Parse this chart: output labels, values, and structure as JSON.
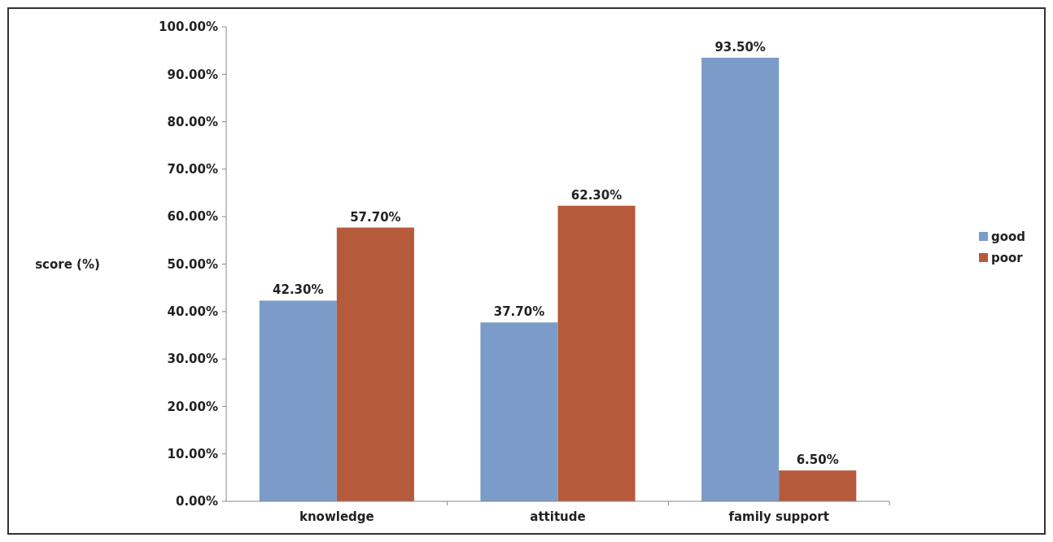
{
  "chart_data": {
    "type": "bar",
    "ylabel": "score (%)",
    "categories": [
      "knowledge",
      "attitude",
      "family support"
    ],
    "series": [
      {
        "name": "good",
        "color": "#7b9cc8",
        "values": [
          42.3,
          37.7,
          93.5
        ],
        "value_labels": [
          "42.30%",
          "37.70%",
          "93.50%"
        ]
      },
      {
        "name": "poor",
        "color": "#b65a3c",
        "values": [
          57.7,
          62.3,
          6.5
        ],
        "value_labels": [
          "57.70%",
          "62.30%",
          "6.50%"
        ]
      }
    ],
    "ylim": [
      0,
      100
    ],
    "yticks": [
      {
        "value": 0,
        "label": "0.00%"
      },
      {
        "value": 10,
        "label": "10.00%"
      },
      {
        "value": 20,
        "label": "20.00%"
      },
      {
        "value": 30,
        "label": "30.00%"
      },
      {
        "value": 40,
        "label": "40.00%"
      },
      {
        "value": 50,
        "label": "50.00%"
      },
      {
        "value": 60,
        "label": "60.00%"
      },
      {
        "value": 70,
        "label": "70.00%"
      },
      {
        "value": 80,
        "label": "80.00%"
      },
      {
        "value": 90,
        "label": "90.00%"
      },
      {
        "value": 100,
        "label": "100.00%"
      }
    ],
    "grid": false,
    "legend": "right"
  }
}
